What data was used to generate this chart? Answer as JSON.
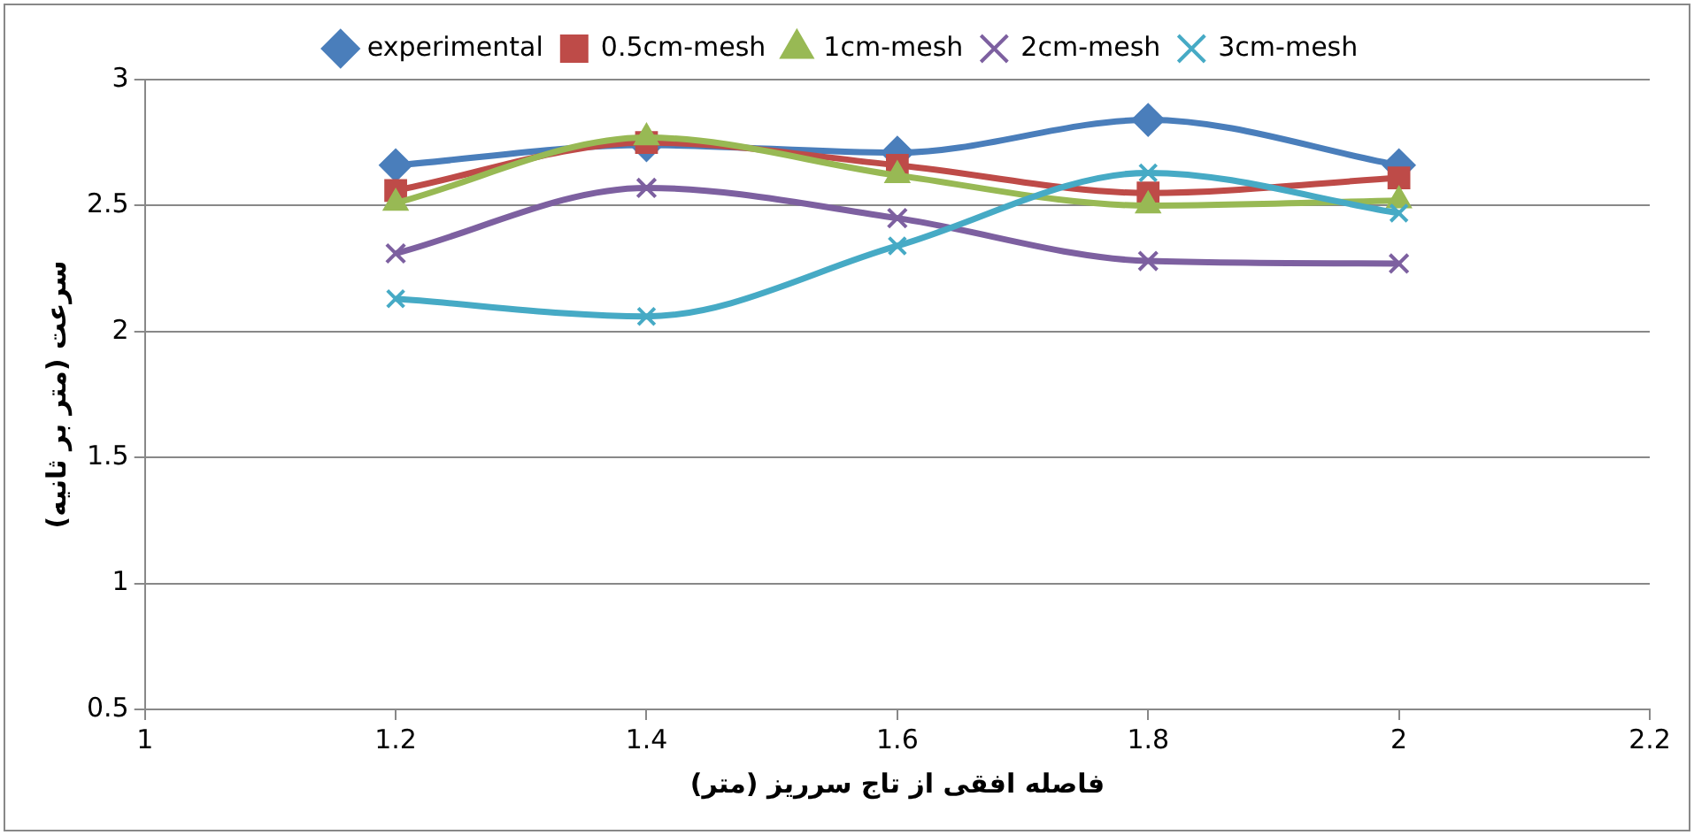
{
  "chart_data": {
    "type": "line",
    "xlabel": "فاصله افقی از تاج سرریز (متر)",
    "ylabel": "سرعت (متر بر ثانیه)",
    "x": [
      1.2,
      1.4,
      1.6,
      1.8,
      2.0
    ],
    "series": [
      {
        "name": "experimental",
        "color": "#4a7ebb",
        "marker": "diamond",
        "values": [
          2.66,
          2.74,
          2.71,
          2.84,
          2.66
        ]
      },
      {
        "name": "0.5cm-mesh",
        "color": "#be4b48",
        "marker": "square",
        "values": [
          2.56,
          2.75,
          2.66,
          2.55,
          2.61
        ]
      },
      {
        "name": "1cm-mesh",
        "color": "#98b954",
        "marker": "triangle",
        "values": [
          2.51,
          2.77,
          2.62,
          2.5,
          2.52
        ]
      },
      {
        "name": "2cm-mesh",
        "color": "#7d60a0",
        "marker": "cross",
        "values": [
          2.31,
          2.57,
          2.45,
          2.28,
          2.27
        ]
      },
      {
        "name": "3cm-mesh",
        "color": "#46aac5",
        "marker": "cross",
        "values": [
          2.13,
          2.06,
          2.34,
          2.63,
          2.47
        ]
      }
    ],
    "xlim": [
      1,
      2.2
    ],
    "xticks": [
      1,
      1.2,
      1.4,
      1.6,
      1.8,
      2,
      2.2
    ],
    "ylim": [
      0.5,
      3
    ],
    "yticks": [
      0.5,
      1,
      1.5,
      2,
      2.5,
      3
    ],
    "grid": "y",
    "legend": "top"
  }
}
